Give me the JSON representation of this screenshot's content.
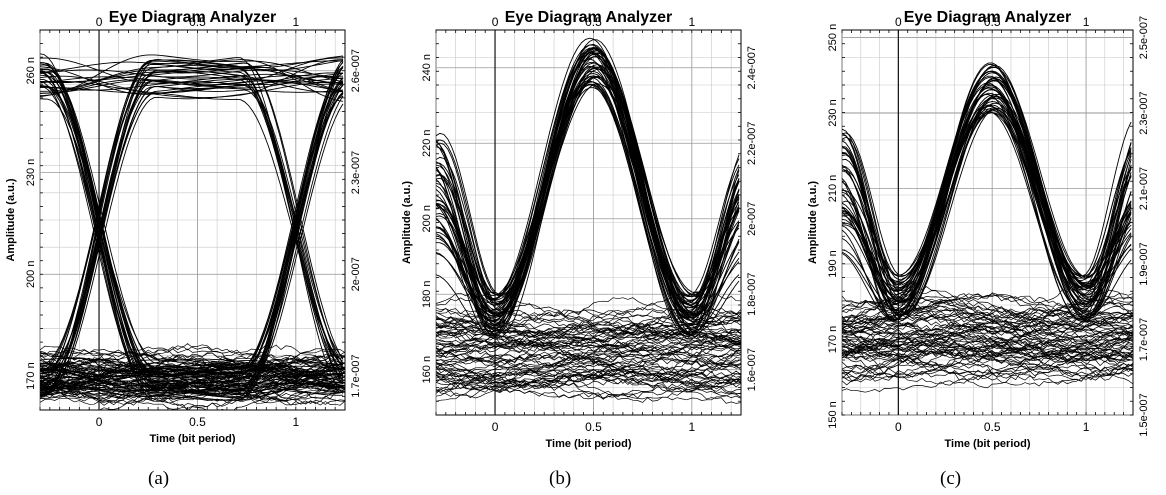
{
  "chart_data": [
    {
      "type": "line",
      "subtype": "eye-diagram",
      "title": "Eye Diagram Analyzer",
      "xlabel": "Time (bit period)",
      "ylabel": "Amplitude (a.u.)",
      "caption": "(a)",
      "xlim": [
        -0.3,
        1.25
      ],
      "ylim": [
        160,
        272
      ],
      "ylim_right": [
        1.6e-07,
        2.72e-07
      ],
      "x_ticks": [
        {
          "v": 0,
          "label": "0"
        },
        {
          "v": 0.5,
          "label": "0.5"
        },
        {
          "v": 1,
          "label": "1"
        }
      ],
      "y_ticks": [
        {
          "v": 170,
          "label": "170 n"
        },
        {
          "v": 200,
          "label": "200 n"
        },
        {
          "v": 230,
          "label": "230 n"
        },
        {
          "v": 260,
          "label": "260 n"
        }
      ],
      "y2_ticks": [
        {
          "v": 1.7e-07,
          "label": "1.7e-007"
        },
        {
          "v": 2e-07,
          "label": "2e-007"
        },
        {
          "v": 2.3e-07,
          "label": "2.3e-007"
        },
        {
          "v": 2.6e-07,
          "label": "2.6e-007"
        }
      ],
      "eye": {
        "pattern": "nrz",
        "high": 258,
        "low": 169,
        "high_spread": 6,
        "low_spread": 5,
        "crossing": 213.5,
        "traces": 80,
        "noise_traces": 60,
        "noise_band": [
          164,
          175
        ]
      },
      "grid": true
    },
    {
      "type": "line",
      "subtype": "eye-diagram",
      "title": "Eye Diagram Analyzer",
      "xlabel": "Time (bit period)",
      "ylabel": "Amplitude (a.u.)",
      "caption": "(b)",
      "xlim": [
        -0.3,
        1.25
      ],
      "ylim": [
        148,
        250
      ],
      "ylim_right": [
        1.48e-07,
        2.5e-07
      ],
      "x_ticks": [
        {
          "v": 0,
          "label": "0"
        },
        {
          "v": 0.5,
          "label": "0.5"
        },
        {
          "v": 1,
          "label": "1"
        }
      ],
      "y_ticks": [
        {
          "v": 160,
          "label": "160 n"
        },
        {
          "v": 180,
          "label": "180 n"
        },
        {
          "v": 200,
          "label": "200 n"
        },
        {
          "v": 220,
          "label": "220 n"
        },
        {
          "v": 240,
          "label": "240 n"
        }
      ],
      "y2_ticks": [
        {
          "v": 1.6e-07,
          "label": "1.6e-007"
        },
        {
          "v": 1.8e-07,
          "label": "1.8e-007"
        },
        {
          "v": 2e-07,
          "label": "2e-007"
        },
        {
          "v": 2.2e-07,
          "label": "2.2e-007"
        },
        {
          "v": 2.4e-07,
          "label": "2.4e-007"
        }
      ],
      "eye": {
        "pattern": "pulse",
        "peak": 241,
        "peak_spread": 7,
        "trough": 172,
        "trough_spread": 12,
        "traces": 45,
        "noise_traces": 70,
        "noise_band": [
          155,
          177
        ]
      },
      "grid": true
    },
    {
      "type": "line",
      "subtype": "eye-diagram",
      "title": "Eye Diagram Analyzer",
      "xlabel": "Time (bit period)",
      "ylabel": "Amplitude (a.u.)",
      "caption": "(c)",
      "xlim": [
        -0.3,
        1.25
      ],
      "ylim": [
        150,
        252
      ],
      "ylim_right": [
        1.5e-07,
        2.52e-07
      ],
      "x_ticks": [
        {
          "v": 0,
          "label": "0"
        },
        {
          "v": 0.5,
          "label": "0.5"
        },
        {
          "v": 1,
          "label": "1"
        }
      ],
      "y_ticks": [
        {
          "v": 150,
          "label": "150 n"
        },
        {
          "v": 170,
          "label": "170 n"
        },
        {
          "v": 190,
          "label": "190 n"
        },
        {
          "v": 210,
          "label": "210 n"
        },
        {
          "v": 230,
          "label": "230 n"
        },
        {
          "v": 250,
          "label": "250 n"
        }
      ],
      "y2_ticks": [
        {
          "v": 1.5e-07,
          "label": "1.5e-007"
        },
        {
          "v": 1.7e-07,
          "label": "1.7e-007"
        },
        {
          "v": 1.9e-07,
          "label": "1.9e-007"
        },
        {
          "v": 2.1e-07,
          "label": "2.1e-007"
        },
        {
          "v": 2.3e-07,
          "label": "2.3e-007"
        },
        {
          "v": 2.5e-07,
          "label": "2.5e-007"
        }
      ],
      "eye": {
        "pattern": "pulse",
        "peak": 237,
        "peak_spread": 7,
        "trough": 178,
        "trough_spread": 13,
        "traces": 45,
        "noise_traces": 70,
        "noise_band": [
          161,
          179
        ]
      },
      "grid": true
    }
  ]
}
